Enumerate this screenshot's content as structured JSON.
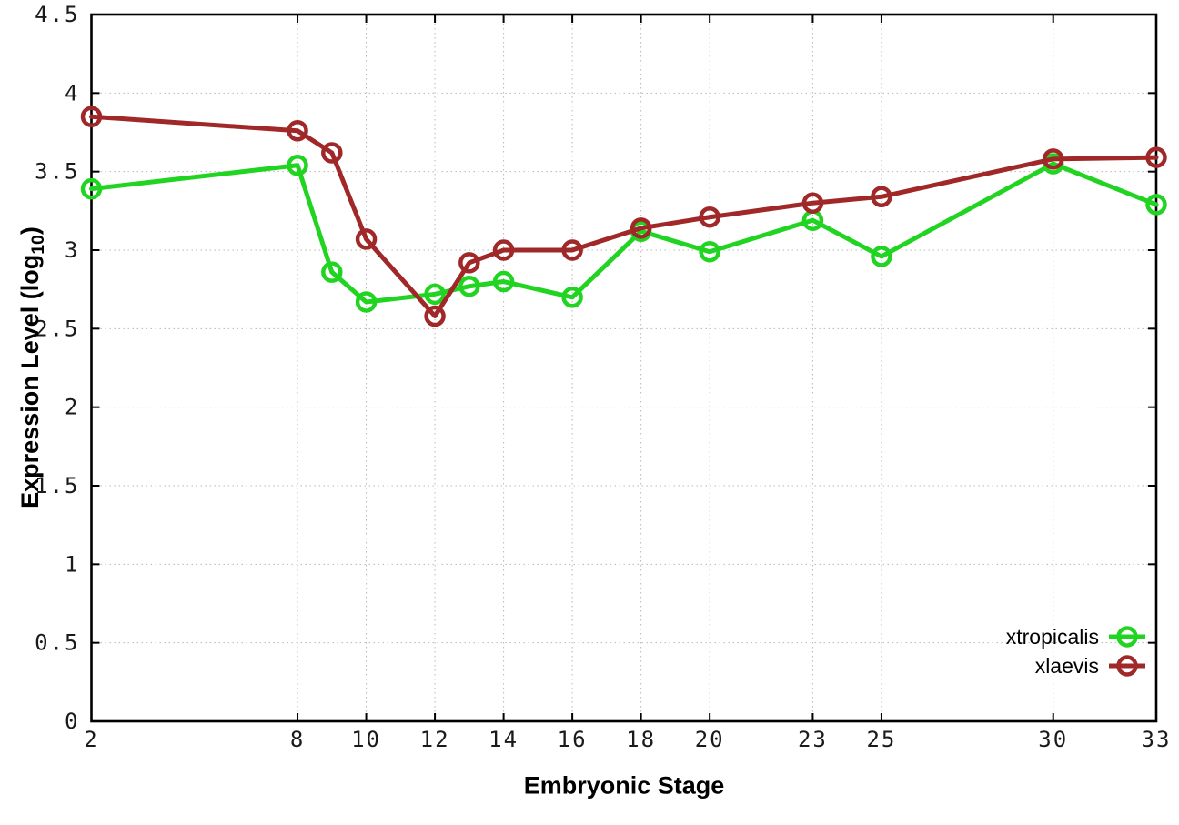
{
  "axes": {
    "x_label": "Embryonic Stage",
    "y_label_main": "Expression Level (log",
    "y_label_sub": "10",
    "y_label_close": ")",
    "x_ticks": [
      "2",
      "8",
      "10",
      "12",
      "14",
      "16",
      "18",
      "20",
      "23",
      "25",
      "30",
      "33"
    ],
    "y_ticks": [
      "0",
      "0.5",
      "1",
      "1.5",
      "2",
      "2.5",
      "3",
      "3.5",
      "4",
      "4.5"
    ]
  },
  "colors": {
    "xtropicalis": "#21d421",
    "xlaevis": "#a02828",
    "grid": "#b8b8b8",
    "axis": "#000000"
  },
  "chart_data": {
    "type": "line",
    "title": "",
    "xlabel": "Embryonic Stage",
    "ylabel": "Expression Level (log10)",
    "x": [
      2,
      8,
      9,
      10,
      12,
      13,
      14,
      16,
      18,
      20,
      23,
      25,
      30,
      33
    ],
    "series": [
      {
        "name": "xtropicalis",
        "color": "#21d421",
        "values": [
          3.39,
          3.54,
          2.86,
          2.67,
          2.72,
          2.77,
          2.8,
          2.7,
          3.12,
          2.99,
          3.19,
          2.96,
          3.55,
          3.29
        ]
      },
      {
        "name": "xlaevis",
        "color": "#a02828",
        "values": [
          3.85,
          3.76,
          3.62,
          3.07,
          2.58,
          2.92,
          3.0,
          3.0,
          3.14,
          3.21,
          3.3,
          3.34,
          3.58,
          3.59
        ]
      }
    ],
    "xlim": [
      2,
      33
    ],
    "ylim": [
      0,
      4.5
    ],
    "x_tick_values": [
      2,
      8,
      10,
      12,
      14,
      16,
      18,
      20,
      23,
      25,
      30,
      33
    ],
    "y_tick_values": [
      0,
      0.5,
      1,
      1.5,
      2,
      2.5,
      3,
      3.5,
      4,
      4.5
    ],
    "grid": true,
    "legend_position": "bottom-right"
  }
}
